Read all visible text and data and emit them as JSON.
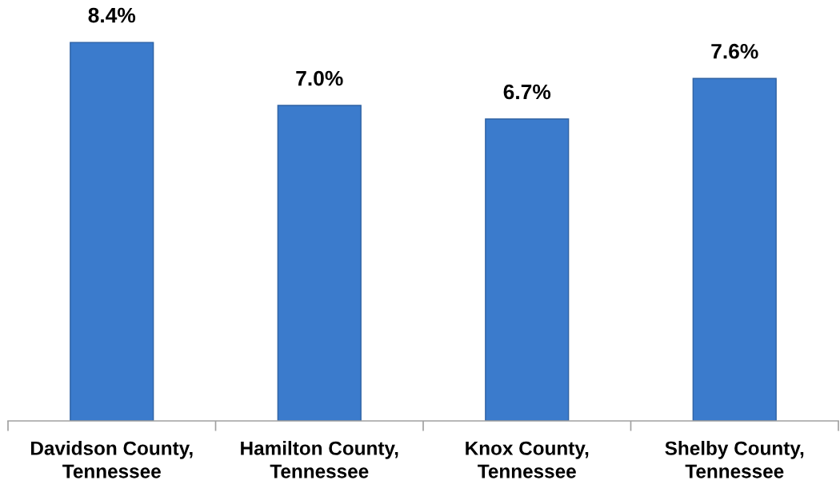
{
  "chart_data": {
    "type": "bar",
    "categories": [
      "Davidson County,\nTennessee",
      "Hamilton County,\nTennessee",
      "Knox County,\nTennessee",
      "Shelby County,\nTennessee"
    ],
    "values": [
      8.4,
      7.0,
      6.7,
      7.6
    ],
    "value_labels": [
      "8.4%",
      "7.0%",
      "6.7%",
      "7.6%"
    ],
    "color": "#3b7bcc",
    "tick_labels": "x"
  }
}
